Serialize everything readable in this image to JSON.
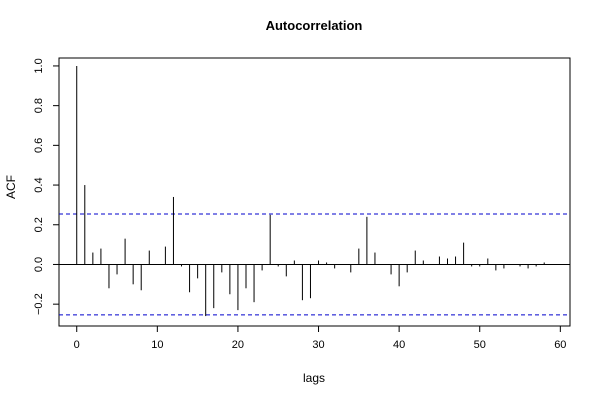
{
  "chart_data": {
    "type": "bar",
    "title": "Autocorrelation",
    "xlabel": "lags",
    "ylabel": "ACF",
    "xlim": [
      -2.2,
      61.2
    ],
    "ylim": [
      -0.31,
      1.04
    ],
    "xticks": [
      0,
      10,
      20,
      30,
      40,
      50,
      60
    ],
    "yticks": [
      -0.2,
      0.0,
      0.2,
      0.4,
      0.6,
      0.8,
      1.0
    ],
    "xtick_labels": [
      "0",
      "10",
      "20",
      "30",
      "40",
      "50",
      "60"
    ],
    "ytick_labels": [
      "−0.2",
      "0.0",
      "0.2",
      "0.4",
      "0.6",
      "0.8",
      "1.0"
    ],
    "conf_bounds": [
      0.254,
      -0.254
    ],
    "colors": {
      "bars": "#000000",
      "conf": "#0000cc",
      "zero": "#000000",
      "frame": "#000000"
    },
    "grid": false,
    "lags": [
      0,
      1,
      2,
      3,
      4,
      5,
      6,
      7,
      8,
      9,
      10,
      11,
      12,
      13,
      14,
      15,
      16,
      17,
      18,
      19,
      20,
      21,
      22,
      23,
      24,
      25,
      26,
      27,
      28,
      29,
      30,
      31,
      32,
      33,
      34,
      35,
      36,
      37,
      38,
      39,
      40,
      41,
      42,
      43,
      44,
      45,
      46,
      47,
      48,
      49,
      50,
      51,
      52,
      53,
      54,
      55,
      56,
      57,
      58,
      59,
      60
    ],
    "acf": [
      1.0,
      0.4,
      0.06,
      0.08,
      -0.12,
      -0.05,
      0.13,
      -0.1,
      -0.13,
      0.07,
      0.0,
      0.09,
      0.34,
      -0.01,
      -0.14,
      -0.07,
      -0.26,
      -0.22,
      -0.04,
      -0.15,
      -0.23,
      -0.12,
      -0.19,
      -0.03,
      0.25,
      -0.01,
      -0.06,
      0.02,
      -0.18,
      -0.17,
      0.02,
      0.01,
      -0.02,
      0.0,
      -0.04,
      0.08,
      0.24,
      0.06,
      0.0,
      -0.05,
      -0.11,
      -0.04,
      0.07,
      0.02,
      0.0,
      0.04,
      0.03,
      0.04,
      0.11,
      -0.01,
      -0.01,
      0.03,
      -0.03,
      -0.02,
      0.0,
      -0.01,
      -0.02,
      -0.01,
      0.01,
      0.0,
      0.0
    ]
  }
}
